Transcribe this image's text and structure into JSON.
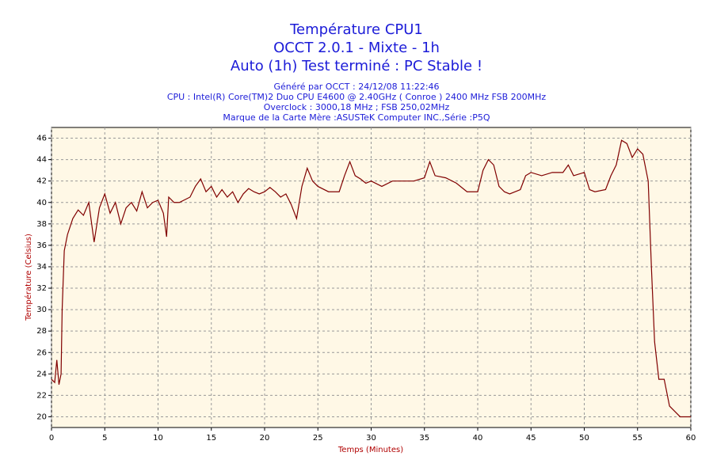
{
  "chart_data": {
    "type": "line",
    "title": "Température CPU1",
    "subtitle": [
      "OCCT 2.0.1 - Mixte - 1h",
      "Auto (1h) Test terminé : PC Stable !"
    ],
    "info": [
      "Généré par OCCT : 24/12/08 11:22:46",
      "CPU : Intel(R) Core(TM)2 Duo CPU E4600 @ 2.40GHz ( Conroe ) 2400 MHz FSB 200MHz",
      "Overclock : 3000,18 MHz ; FSB 250,02MHz",
      "Marque de la Carte Mère :ASUSTeK Computer INC.,Série :P5Q"
    ],
    "x_label": "Temps (Minutes)",
    "y_label": "Température (Celsius)",
    "xlim": [
      0,
      60
    ],
    "ylim": [
      19,
      47
    ],
    "xticks": [
      0,
      5,
      10,
      15,
      20,
      25,
      30,
      35,
      40,
      45,
      50,
      55,
      60
    ],
    "yticks": [
      20,
      22,
      24,
      26,
      28,
      30,
      32,
      34,
      36,
      38,
      40,
      42,
      44,
      46
    ],
    "grid": true,
    "series": [
      {
        "name": "CPU1",
        "color": "#800000",
        "x": [
          0,
          0.3,
          0.5,
          0.7,
          0.9,
          1.0,
          1.2,
          1.5,
          2,
          2.5,
          3,
          3.5,
          4,
          4.5,
          5,
          5.5,
          6,
          6.5,
          7,
          7.5,
          8,
          8.5,
          9,
          9.5,
          10,
          10.5,
          10.8,
          11,
          11.5,
          12,
          13,
          13.5,
          14,
          14.5,
          15,
          15.5,
          16,
          16.5,
          17,
          17.5,
          18,
          18.5,
          19,
          19.5,
          20,
          20.5,
          21,
          21.5,
          22,
          22.5,
          23,
          23.5,
          24,
          24.5,
          25,
          26,
          27,
          27.5,
          28,
          28.5,
          29,
          29.5,
          30,
          31,
          32,
          33,
          34,
          35,
          35.5,
          36,
          37,
          38,
          39,
          40,
          40.5,
          41,
          41.5,
          42,
          42.5,
          43,
          44,
          44.5,
          45,
          46,
          47,
          48,
          48.5,
          49,
          50,
          50.5,
          51,
          52,
          52.5,
          53,
          53.5,
          54,
          54.5,
          55,
          55.5,
          56,
          56.3,
          56.6,
          57,
          57.5,
          58,
          58.5,
          59,
          60
        ],
        "values": [
          23.5,
          23.2,
          25.3,
          23,
          24,
          30,
          35.5,
          37,
          38.5,
          39.3,
          38.8,
          40,
          36.3,
          39.5,
          40.8,
          39,
          40,
          38,
          39.5,
          40,
          39.2,
          41,
          39.5,
          40,
          40.2,
          39,
          36.8,
          40.5,
          40,
          40,
          40.5,
          41.5,
          42.2,
          41,
          41.5,
          40.5,
          41.2,
          40.5,
          41,
          40,
          40.8,
          41.3,
          41,
          40.8,
          41,
          41.4,
          41,
          40.5,
          40.8,
          39.8,
          38.5,
          41.5,
          43.2,
          42,
          41.5,
          41,
          41,
          42.5,
          43.8,
          42.5,
          42.2,
          41.8,
          42,
          41.5,
          42,
          42,
          42,
          42.3,
          43.8,
          42.5,
          42.3,
          41.8,
          41,
          41,
          43,
          44,
          43.5,
          41.5,
          41,
          40.8,
          41.2,
          42.5,
          42.8,
          42.5,
          42.8,
          42.8,
          43.5,
          42.5,
          42.8,
          41.2,
          41,
          41.2,
          42.5,
          43.5,
          45.8,
          45.5,
          44.2,
          45,
          44.5,
          42,
          34,
          27,
          23.5,
          23.5,
          21,
          20.5,
          20,
          20
        ]
      }
    ]
  }
}
